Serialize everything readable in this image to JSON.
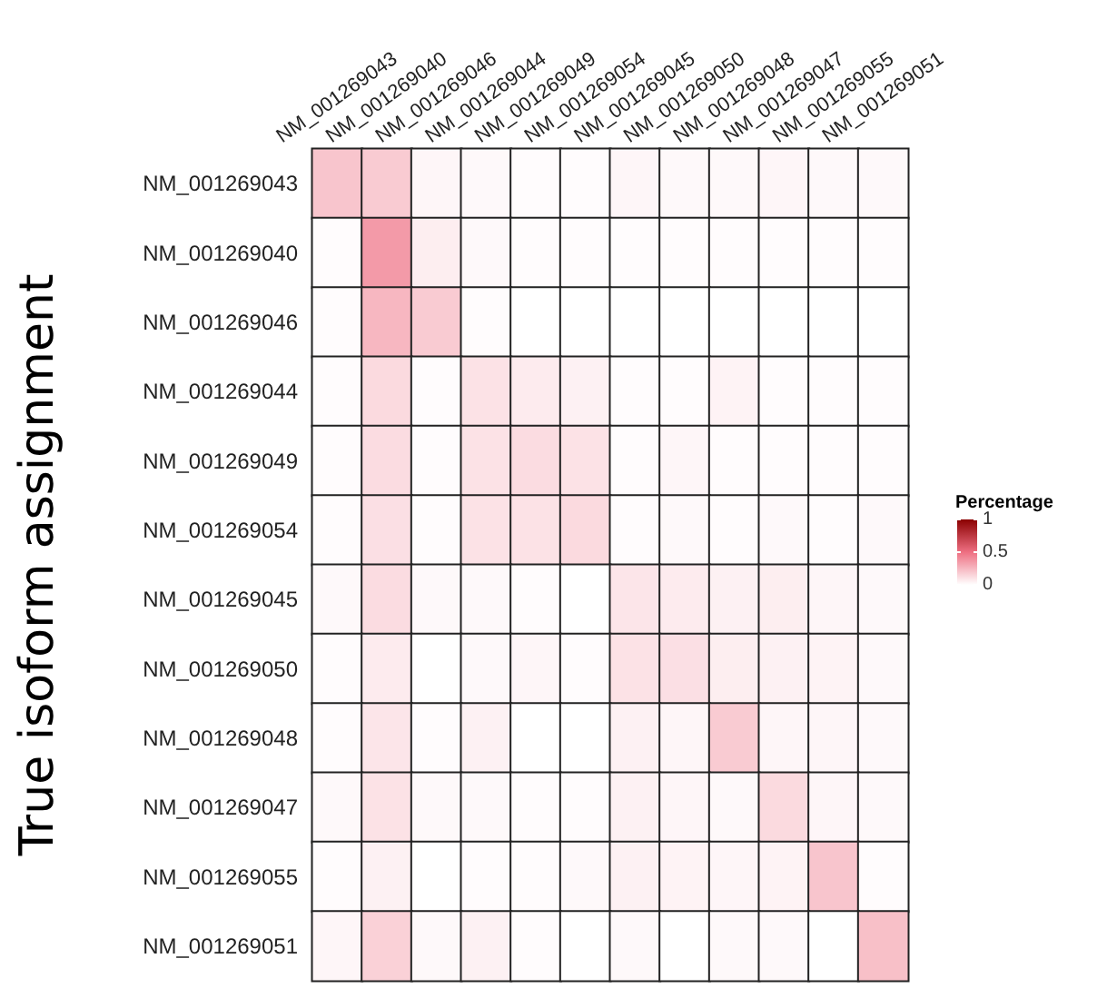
{
  "chart_data": {
    "type": "heatmap",
    "ylabel": "True isoform assignment",
    "clabel": "Percentage",
    "categories": [
      "NM_001269043",
      "NM_001269040",
      "NM_001269046",
      "NM_001269044",
      "NM_001269049",
      "NM_001269054",
      "NM_001269045",
      "NM_001269050",
      "NM_001269048",
      "NM_001269047",
      "NM_001269055",
      "NM_001269051"
    ],
    "y_categories": [
      "NM_001269043",
      "NM_001269040",
      "NM_001269046",
      "NM_001269044",
      "NM_001269049",
      "NM_001269054",
      "NM_001269045",
      "NM_001269050",
      "NM_001269048",
      "NM_001269047",
      "NM_001269055",
      "NM_001269051"
    ],
    "cells": [
      [
        0.2,
        0.18,
        0.03,
        0.02,
        0.01,
        0.01,
        0.03,
        0.02,
        0.02,
        0.03,
        0.02,
        0.02
      ],
      [
        0.01,
        0.35,
        0.06,
        0.02,
        0.01,
        0.01,
        0.01,
        0.01,
        0.01,
        0.01,
        0.01,
        0.01
      ],
      [
        0.01,
        0.25,
        0.18,
        0.01,
        0,
        0,
        0,
        0,
        0,
        0,
        0,
        0
      ],
      [
        0.01,
        0.13,
        0.01,
        0.1,
        0.07,
        0.05,
        0.01,
        0.01,
        0.04,
        0.01,
        0.01,
        0.01
      ],
      [
        0.01,
        0.12,
        0.01,
        0.1,
        0.12,
        0.1,
        0.01,
        0.03,
        0.01,
        0.01,
        0.01,
        0.01
      ],
      [
        0.01,
        0.11,
        0.01,
        0.1,
        0.1,
        0.13,
        0.01,
        0.02,
        0.01,
        0.02,
        0.01,
        0.02
      ],
      [
        0.02,
        0.12,
        0.02,
        0.02,
        0.01,
        0,
        0.09,
        0.07,
        0.05,
        0.06,
        0.03,
        0.02
      ],
      [
        0.01,
        0.07,
        0,
        0.02,
        0.03,
        0.01,
        0.1,
        0.11,
        0.06,
        0.05,
        0.04,
        0.02
      ],
      [
        0.01,
        0.09,
        0.01,
        0.05,
        0,
        0,
        0.05,
        0.03,
        0.18,
        0.03,
        0.03,
        0.02
      ],
      [
        0.02,
        0.1,
        0.02,
        0.02,
        0.01,
        0.01,
        0.05,
        0.03,
        0.02,
        0.13,
        0.03,
        0.02
      ],
      [
        0.01,
        0.05,
        0,
        0.01,
        0.01,
        0.02,
        0.05,
        0.04,
        0.03,
        0.04,
        0.2,
        0.01
      ],
      [
        0.03,
        0.16,
        0.02,
        0.05,
        0.01,
        0,
        0.02,
        0,
        0.02,
        0.02,
        0,
        0.22
      ]
    ],
    "clim": [
      0,
      1
    ],
    "cticks": [
      0,
      0.5,
      1
    ]
  }
}
